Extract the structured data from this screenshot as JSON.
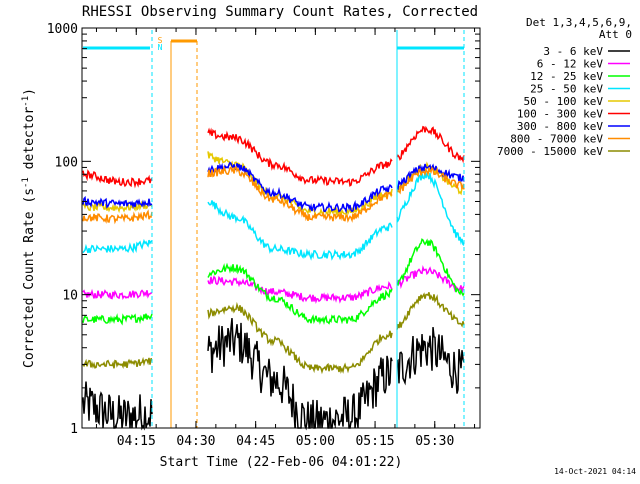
{
  "chart_data": {
    "type": "line",
    "title": "RHESSI Observing Summary Count Rates, Corrected",
    "xlabel": "Start Time (22-Feb-06 04:01:22)",
    "ylabel_prefix": "Corrected Count Rate (s",
    "ylabel_sup1": "-1",
    "ylabel_mid": " detector",
    "ylabel_sup2": "-1",
    "ylabel_suffix": ")",
    "footer": "14-Oct-2021 04:14",
    "legend_header": [
      "Det 1,3,4,5,6,9,",
      "Att 0"
    ],
    "legend_placement": "right",
    "y_scale": "log",
    "ylim": [
      1,
      1000
    ],
    "xlim": [
      "04:01:22",
      "05:41:22"
    ],
    "x_ticks": [
      "04:15",
      "04:30",
      "04:45",
      "05:00",
      "05:15",
      "05:30"
    ],
    "y_ticks": [
      "1",
      "10",
      "100",
      "1000"
    ],
    "flag_labels": [
      "S",
      "N"
    ],
    "flag_colors": [
      "#00e6ff",
      "#ff9a00"
    ],
    "series": [
      {
        "name": "3 - 6 keV",
        "color": "#000000",
        "profile": [
          1.5,
          1.2,
          1.3,
          3.5,
          4.5,
          2.3,
          1.1,
          1.2,
          2.5,
          4.0,
          2.6
        ]
      },
      {
        "name": "6 - 12 keV",
        "color": "#ff00ff",
        "profile": [
          10,
          10,
          10.5,
          13,
          12.5,
          10.5,
          9.5,
          9.5,
          11.5,
          15,
          11
        ]
      },
      {
        "name": "12 - 25 keV",
        "color": "#00ff00",
        "profile": [
          6.5,
          6.5,
          7,
          14,
          16,
          9.5,
          6.5,
          6.5,
          10,
          25,
          10
        ]
      },
      {
        "name": "25 - 50 keV",
        "color": "#00e6ff",
        "profile": [
          22,
          22,
          25,
          55,
          38,
          22,
          20,
          20,
          32,
          80,
          25
        ]
      },
      {
        "name": "50 - 100 keV",
        "color": "#e6c800",
        "profile": [
          45,
          45,
          48,
          115,
          95,
          55,
          42,
          42,
          58,
          90,
          60
        ]
      },
      {
        "name": "100 - 300 keV",
        "color": "#ff0000",
        "profile": [
          80,
          70,
          72,
          165,
          150,
          95,
          72,
          70,
          95,
          175,
          105
        ]
      },
      {
        "name": "300 - 800 keV",
        "color": "#0000ff",
        "profile": [
          50,
          48,
          50,
          85,
          92,
          58,
          45,
          45,
          62,
          90,
          75
        ]
      },
      {
        "name": "800 - 7000 keV",
        "color": "#ff8c00",
        "profile": [
          38,
          37,
          40,
          80,
          85,
          52,
          38,
          38,
          55,
          85,
          65
        ]
      },
      {
        "name": "7000 - 15000 keV",
        "color": "#8c8c00",
        "profile": [
          3.0,
          3.0,
          3.2,
          7,
          8,
          4.5,
          2.8,
          2.8,
          5,
          10,
          6
        ]
      }
    ]
  }
}
